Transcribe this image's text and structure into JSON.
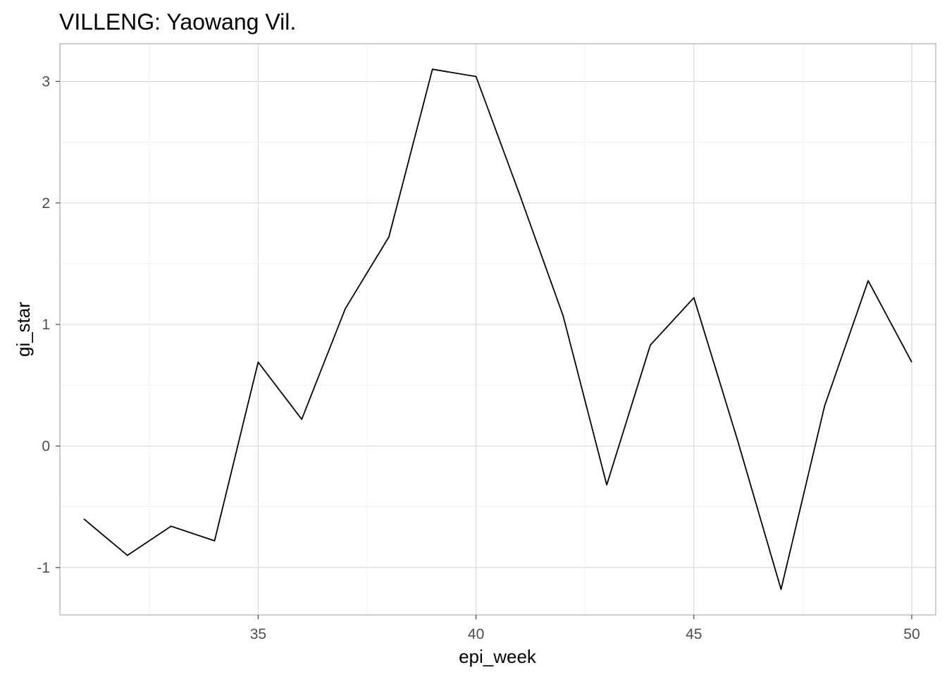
{
  "chart_data": {
    "type": "line",
    "title": "VILLENG: Yaowang Vil.",
    "xlabel": "epi_week",
    "ylabel": "gi_star",
    "x": [
      31,
      32,
      33,
      34,
      35,
      36,
      37,
      38,
      39,
      40,
      41,
      42,
      43,
      44,
      45,
      46,
      47,
      48,
      49,
      50
    ],
    "series": [
      {
        "values": [
          -0.6,
          -0.9,
          -0.66,
          -0.78,
          0.69,
          0.22,
          1.13,
          1.72,
          3.1,
          3.04,
          2.07,
          1.07,
          -0.32,
          0.83,
          1.22,
          0.05,
          -1.18,
          0.33,
          1.36,
          0.69
        ]
      }
    ],
    "xlim": [
      30.45,
      50.55
    ],
    "ylim": [
      -1.39,
      3.31
    ],
    "xticks": [
      35,
      40,
      45,
      50
    ],
    "xtick_labels": [
      "35",
      "40",
      "45",
      "50"
    ],
    "yticks": [
      -1,
      0,
      1,
      2,
      3
    ],
    "ytick_labels": [
      "-1",
      "0",
      "1",
      "2",
      "3"
    ],
    "grid": true,
    "line_color": "#000000",
    "theme": "light"
  }
}
